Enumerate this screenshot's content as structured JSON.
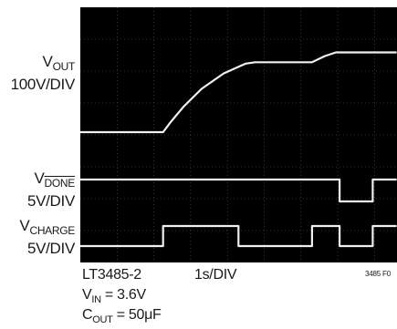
{
  "labels": {
    "vout_main": "V",
    "vout_sub": "OUT",
    "vout_scale": "100V/DIV",
    "vdone_main": "V",
    "vdone_sub": "DONE",
    "vdone_scale": "5V/DIV",
    "vcharge_main": "V",
    "vcharge_sub": "CHARGE",
    "vcharge_scale": "5V/DIV"
  },
  "caption": {
    "part": "LT3485-2",
    "timebase": "1s/DIV",
    "vin_main": "V",
    "vin_sub": "IN",
    "vin_value": " = 3.6V",
    "cout_main": "C",
    "cout_sub": "OUT",
    "cout_value": " = 50μF",
    "figure_id": "3485 F0"
  },
  "colors": {
    "screen": "#000000",
    "trace": "#f0f0f0",
    "grid": "#5a5a5a"
  },
  "chart_data": {
    "type": "line",
    "title": "",
    "grid": true,
    "xlabel": "1s/DIV",
    "x_range": [
      0,
      8.6
    ],
    "series": [
      {
        "name": "VOUT 100V/DIV",
        "points": [
          [
            0,
            0
          ],
          [
            2.25,
            0
          ],
          [
            2.45,
            0.35
          ],
          [
            2.8,
            0.9
          ],
          [
            3.3,
            1.55
          ],
          [
            3.9,
            2.1
          ],
          [
            4.5,
            2.45
          ],
          [
            4.75,
            2.5
          ],
          [
            6.3,
            2.5
          ],
          [
            6.65,
            2.72
          ],
          [
            6.95,
            2.85
          ],
          [
            8.6,
            2.85
          ]
        ]
      },
      {
        "name": "VDONE 5V/DIV",
        "points": [
          [
            0,
            1
          ],
          [
            7.05,
            1
          ],
          [
            7.05,
            0
          ],
          [
            7.95,
            0
          ],
          [
            7.95,
            1
          ],
          [
            8.6,
            1
          ]
        ]
      },
      {
        "name": "VCHARGE 5V/DIV",
        "points": [
          [
            0,
            0
          ],
          [
            2.25,
            0
          ],
          [
            2.25,
            1
          ],
          [
            4.3,
            1
          ],
          [
            4.3,
            0
          ],
          [
            6.3,
            0
          ],
          [
            6.3,
            1
          ],
          [
            7.05,
            1
          ],
          [
            7.05,
            0
          ],
          [
            7.95,
            0
          ],
          [
            7.95,
            1
          ],
          [
            8.6,
            1
          ]
        ]
      }
    ]
  }
}
